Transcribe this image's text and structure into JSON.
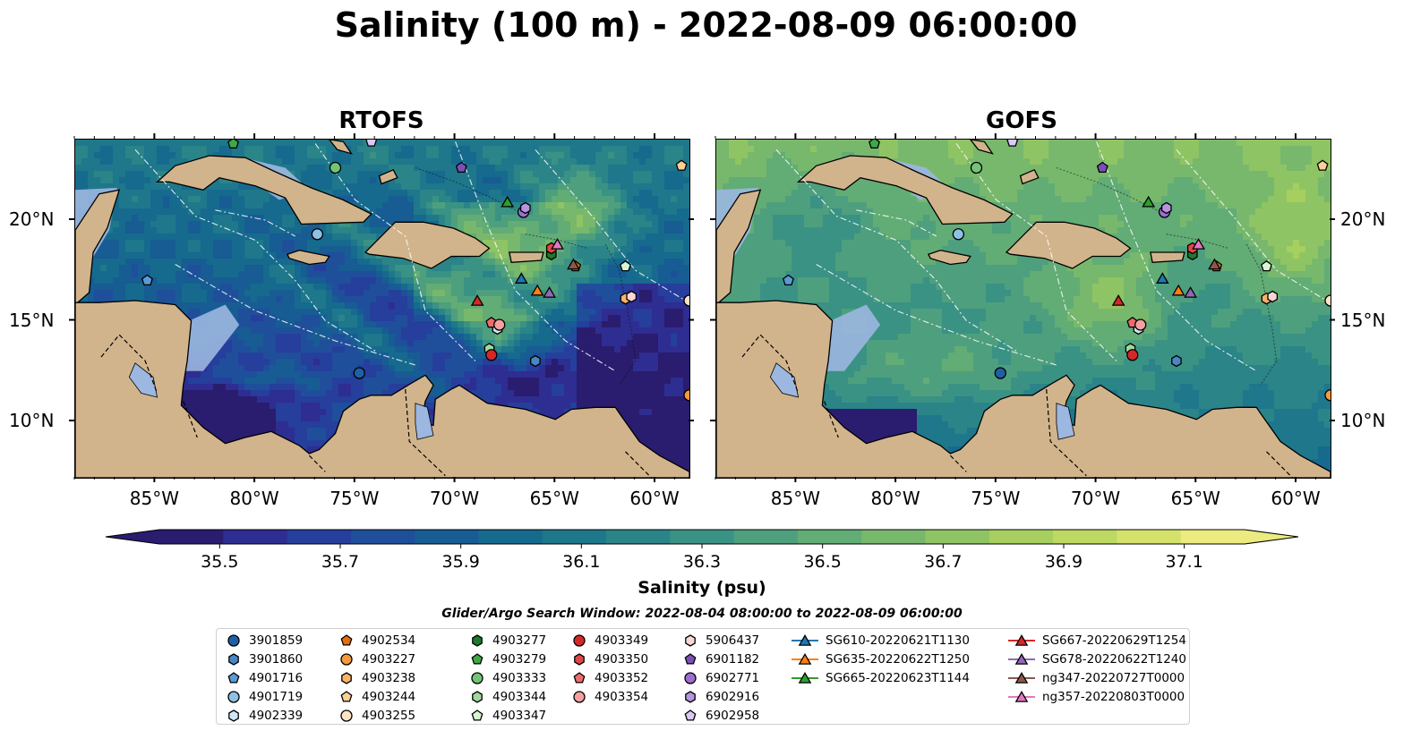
{
  "title": "Salinity (100 m) - 2022-08-09 06:00:00",
  "panels": [
    {
      "title": "RTOFS",
      "model": "rtofs"
    },
    {
      "title": "GOFS",
      "model": "gofs"
    }
  ],
  "colorbar": {
    "label": "Salinity (psu)",
    "ticks": [
      "35.5",
      "35.7",
      "35.9",
      "36.1",
      "36.3",
      "36.5",
      "36.7",
      "36.9",
      "37.1"
    ],
    "min": 35.4,
    "max": 37.2,
    "extend": "both",
    "colors": [
      "#2a1c6e",
      "#2e2d91",
      "#263e9c",
      "#1f4f9a",
      "#175c93",
      "#166a8e",
      "#1e778b",
      "#2a8488",
      "#3a9284",
      "#4e9f7d",
      "#62ac75",
      "#78b86d",
      "#8fc464",
      "#a6cf5f",
      "#bdd962",
      "#d4e26c",
      "#ebeb80"
    ]
  },
  "axes": {
    "lon_ticks": [
      "85°W",
      "80°W",
      "75°W",
      "70°W",
      "65°W",
      "60°W"
    ],
    "lat_ticks": [
      "20°N",
      "15°N",
      "10°N"
    ]
  },
  "search_window": "Glider/Argo Search Window: 2022-08-04 08:00:00 to 2022-08-09 06:00:00",
  "legend": [
    {
      "label": "3901859",
      "marker": "circle",
      "color": "#1f5fa6"
    },
    {
      "label": "3901860",
      "marker": "hexagon",
      "color": "#4a86c4"
    },
    {
      "label": "4901716",
      "marker": "pentagon",
      "color": "#5b9bd5"
    },
    {
      "label": "4901719",
      "marker": "circle",
      "color": "#8fc1e3"
    },
    {
      "label": "4902339",
      "marker": "hexagon",
      "color": "#cfe6f7"
    },
    {
      "label": "4902534",
      "marker": "pentagon",
      "color": "#e66d0a"
    },
    {
      "label": "4903227",
      "marker": "circle",
      "color": "#f39a3b"
    },
    {
      "label": "4903238",
      "marker": "hexagon",
      "color": "#f8b26a"
    },
    {
      "label": "4903244",
      "marker": "pentagon",
      "color": "#fbcf98"
    },
    {
      "label": "4903255",
      "marker": "circle",
      "color": "#fde3c6"
    },
    {
      "label": "4903277",
      "marker": "hexagon",
      "color": "#1d7a2a"
    },
    {
      "label": "4903279",
      "marker": "pentagon",
      "color": "#3ea845"
    },
    {
      "label": "4903333",
      "marker": "circle",
      "color": "#74c476"
    },
    {
      "label": "4903344",
      "marker": "hexagon",
      "color": "#a1d99b"
    },
    {
      "label": "4903347",
      "marker": "pentagon",
      "color": "#d6f5d0"
    },
    {
      "label": "4903349",
      "marker": "circle",
      "color": "#d62728"
    },
    {
      "label": "4903350",
      "marker": "hexagon",
      "color": "#e0454a"
    },
    {
      "label": "4903352",
      "marker": "pentagon",
      "color": "#ec6c6c"
    },
    {
      "label": "4903354",
      "marker": "circle",
      "color": "#f4a0a0"
    },
    {
      "label": "5906437",
      "marker": "hexagon",
      "color": "#fcd5d5"
    },
    {
      "label": "6901182",
      "marker": "pentagon",
      "color": "#7b4fb5"
    },
    {
      "label": "6902771",
      "marker": "circle",
      "color": "#9b6fd0"
    },
    {
      "label": "6902916",
      "marker": "hexagon",
      "color": "#b793e0"
    },
    {
      "label": "6902958",
      "marker": "pentagon",
      "color": "#dcc8f5"
    },
    {
      "label": "SG610-20220621T1130",
      "marker": "triangle",
      "color": "#1f77b4"
    },
    {
      "label": "SG635-20220622T1250",
      "marker": "triangle",
      "color": "#ff7f0e"
    },
    {
      "label": "SG665-20220623T1144",
      "marker": "triangle",
      "color": "#2ca02c"
    },
    {
      "label": "SG667-20220629T1254",
      "marker": "triangle",
      "color": "#d62728"
    },
    {
      "label": "SG678-20220622T1240",
      "marker": "triangle",
      "color": "#9467bd"
    },
    {
      "label": "ng347-20220727T0000",
      "marker": "triangle",
      "color": "#8c564b"
    },
    {
      "label": "ng357-20220803T0000",
      "marker": "triangle",
      "color": "#e377c2"
    }
  ],
  "chart_data": {
    "type": "heatmap",
    "variable": "Salinity (psu)",
    "depth": "100 m",
    "time": "2022-08-09 06:00:00",
    "extent": {
      "lon": [
        -89,
        -58.3
      ],
      "lat": [
        7.2,
        24
      ]
    },
    "observations": [
      {
        "label": "3901859",
        "lon": -74.8,
        "lat": 12.4
      },
      {
        "label": "3901860",
        "lon": -66.0,
        "lat": 13.0
      },
      {
        "label": "4901716",
        "lon": -85.4,
        "lat": 17.0
      },
      {
        "label": "4901719",
        "lon": -76.9,
        "lat": 19.3
      },
      {
        "label": "4902339",
        "lon": -67.9,
        "lat": 14.6
      },
      {
        "label": "4902534",
        "lon": -64.0,
        "lat": 17.7
      },
      {
        "label": "4903227",
        "lon": -58.3,
        "lat": 11.3
      },
      {
        "label": "4903238",
        "lon": -61.5,
        "lat": 16.1
      },
      {
        "label": "4903244",
        "lon": -58.7,
        "lat": 22.7
      },
      {
        "label": "4903255",
        "lon": -58.3,
        "lat": 16.0
      },
      {
        "label": "4903277",
        "lon": -65.2,
        "lat": 18.3
      },
      {
        "label": "4903279",
        "lon": -81.1,
        "lat": 23.8
      },
      {
        "label": "4903333",
        "lon": -76.0,
        "lat": 22.6
      },
      {
        "label": "4903344",
        "lon": -68.3,
        "lat": 13.6
      },
      {
        "label": "4903347",
        "lon": -61.5,
        "lat": 17.7
      },
      {
        "label": "4903349",
        "lon": -68.2,
        "lat": 13.3
      },
      {
        "label": "4903350",
        "lon": -65.2,
        "lat": 18.6
      },
      {
        "label": "4903352",
        "lon": -68.2,
        "lat": 14.9
      },
      {
        "label": "4903354",
        "lon": -67.8,
        "lat": 14.8
      },
      {
        "label": "5906437",
        "lon": -61.2,
        "lat": 16.2
      },
      {
        "label": "6901182",
        "lon": -69.7,
        "lat": 22.6
      },
      {
        "label": "6902771",
        "lon": -66.6,
        "lat": 20.4
      },
      {
        "label": "6902916",
        "lon": -66.5,
        "lat": 20.6
      },
      {
        "label": "6902958",
        "lon": -74.2,
        "lat": 23.9
      },
      {
        "label": "SG610-20220621T1130",
        "lon": -66.7,
        "lat": 17.1
      },
      {
        "label": "SG635-20220622T1250",
        "lon": -65.9,
        "lat": 16.5
      },
      {
        "label": "SG665-20220623T1144",
        "lon": -67.4,
        "lat": 20.9
      },
      {
        "label": "SG667-20220629T1254",
        "lon": -68.9,
        "lat": 16.0
      },
      {
        "label": "SG678-20220622T1240",
        "lon": -65.3,
        "lat": 16.4
      },
      {
        "label": "ng347-20220727T0000",
        "lon": -64.1,
        "lat": 17.8
      },
      {
        "label": "ng357-20220803T0000",
        "lon": -64.9,
        "lat": 18.8
      }
    ]
  }
}
